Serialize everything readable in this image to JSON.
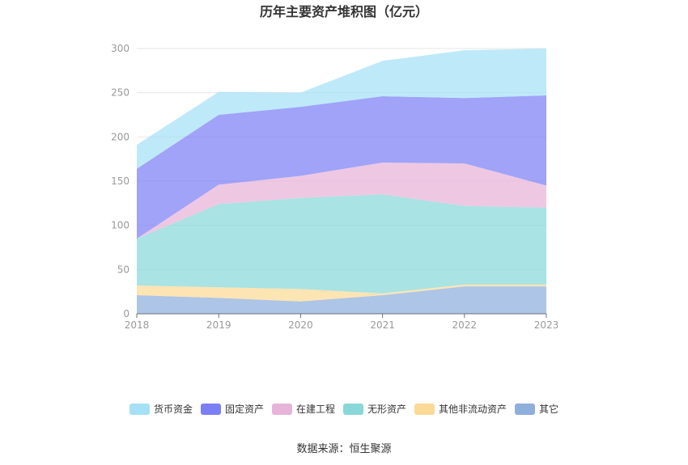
{
  "chart_data": {
    "type": "area",
    "stacked": true,
    "title": "历年主要资产堆积图（亿元）",
    "x": [
      "2018",
      "2019",
      "2020",
      "2021",
      "2022",
      "2023"
    ],
    "ylim": [
      0,
      300
    ],
    "yticks": [
      "0",
      "50",
      "100",
      "150",
      "200",
      "250",
      "300"
    ],
    "grid": true,
    "legend_position": "bottom",
    "series": [
      {
        "name": "其它",
        "color": "#8eaedc",
        "values": [
          21,
          18,
          14,
          21,
          31,
          31
        ]
      },
      {
        "name": "其他非流动资产",
        "color": "#fcd996",
        "values": [
          11,
          12,
          14,
          2,
          2,
          2
        ]
      },
      {
        "name": "无形资产",
        "color": "#88d8d8",
        "values": [
          53,
          94,
          103,
          112,
          89,
          87
        ]
      },
      {
        "name": "在建工程",
        "color": "#e7b3d8",
        "values": [
          0,
          22,
          25,
          36,
          48,
          25
        ]
      },
      {
        "name": "固定资产",
        "color": "#7b7ff5",
        "values": [
          79,
          79,
          78,
          75,
          74,
          102
        ]
      },
      {
        "name": "货币资金",
        "color": "#a5e0f7",
        "values": [
          27,
          26,
          16,
          40,
          54,
          53
        ]
      }
    ],
    "legend_order": [
      "货币资金",
      "固定资产",
      "在建工程",
      "无形资产",
      "其他非流动资产",
      "其它"
    ]
  },
  "source": "数据来源：恒生聚源"
}
